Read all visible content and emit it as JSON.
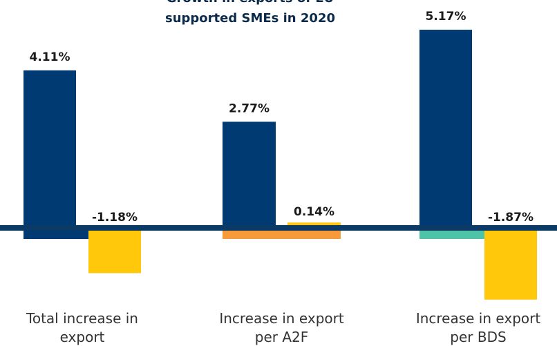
{
  "chart_data": {
    "type": "bar",
    "title_lines": [
      "Growth in exports of EU",
      "supported SMEs in 2020"
    ],
    "categories": [
      [
        "Total increase in",
        "export"
      ],
      [
        "Increase in export",
        "per A2F"
      ],
      [
        "Increase in export",
        "per BDS"
      ]
    ],
    "series": [
      {
        "values": [
          4.11,
          2.77,
          5.17
        ],
        "labels": [
          "4.11%",
          "2.77%",
          "5.17%"
        ],
        "color": "#003a73"
      },
      {
        "values": [
          -1.18,
          0.14,
          -1.87
        ],
        "labels": [
          "-1.18%",
          "0.14%",
          "-1.87%"
        ],
        "color": "#ffc80a"
      }
    ],
    "zero_band_colors": [
      "#003a73",
      "#f79a3a",
      "#4fc3a8"
    ],
    "axis_color": "#0b3a66",
    "ylim": [
      -2.2,
      6.0
    ],
    "grid": false,
    "legend": "none"
  }
}
